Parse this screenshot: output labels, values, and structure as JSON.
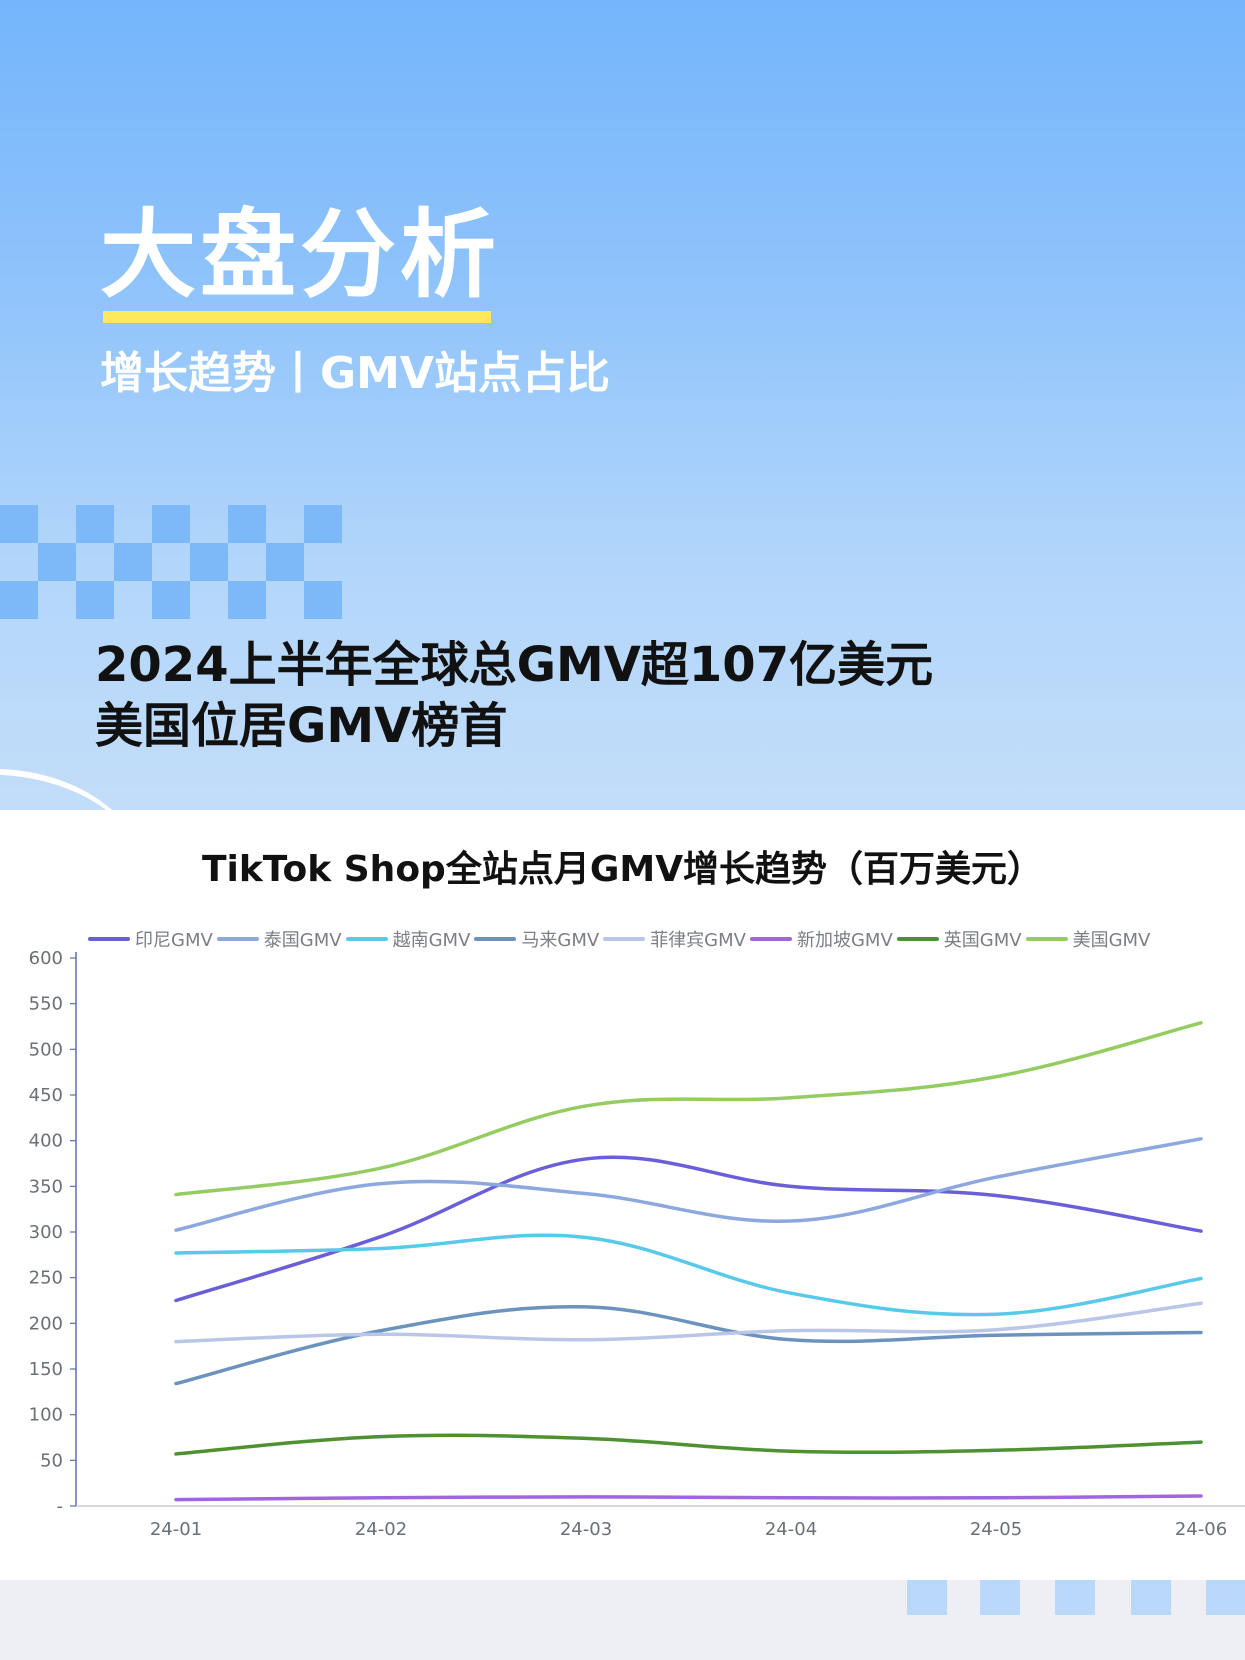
{
  "hero": {
    "title": "大盘分析",
    "subtitle": "增长趋势丨GMV站点占比",
    "headline_line1": "2024上半年全球总GMV超107亿美元",
    "headline_line2": "美国位居GMV榜首",
    "accent_underline_color": "#ffe95a"
  },
  "chart_data": {
    "type": "line",
    "title": "TikTok Shop全站点月GMV增长趋势（百万美元）",
    "xlabel": "",
    "ylabel": "",
    "categories": [
      "24-01",
      "24-02",
      "24-03",
      "24-04",
      "24-05",
      "24-06"
    ],
    "ylim": [
      0,
      600
    ],
    "yticks": [
      "-",
      "50",
      "100",
      "150",
      "200",
      "250",
      "300",
      "350",
      "400",
      "450",
      "500",
      "550",
      "600"
    ],
    "grid": false,
    "legend_position": "top",
    "smooth": true,
    "series": [
      {
        "name": "印尼GMV",
        "color": "#6a5fd8",
        "values": [
          225,
          295,
          380,
          350,
          340,
          301
        ]
      },
      {
        "name": "泰国GMV",
        "color": "#8da8de",
        "values": [
          302,
          353,
          342,
          312,
          360,
          402
        ]
      },
      {
        "name": "越南GMV",
        "color": "#59c9ea",
        "values": [
          277,
          282,
          294,
          233,
          210,
          249
        ]
      },
      {
        "name": "马来GMV",
        "color": "#6b93bd",
        "values": [
          134,
          192,
          218,
          182,
          187,
          190
        ]
      },
      {
        "name": "菲律宾GMV",
        "color": "#b9c6e8",
        "values": [
          180,
          188,
          182,
          192,
          193,
          222
        ]
      },
      {
        "name": "新加坡GMV",
        "color": "#a066e0",
        "values": [
          7,
          9,
          10,
          9,
          9,
          11
        ]
      },
      {
        "name": "英国GMV",
        "color": "#4e9130",
        "values": [
          57,
          76,
          74,
          60,
          61,
          70
        ]
      },
      {
        "name": "美国GMV",
        "color": "#95cc62",
        "values": [
          341,
          370,
          438,
          447,
          470,
          529
        ]
      }
    ]
  }
}
